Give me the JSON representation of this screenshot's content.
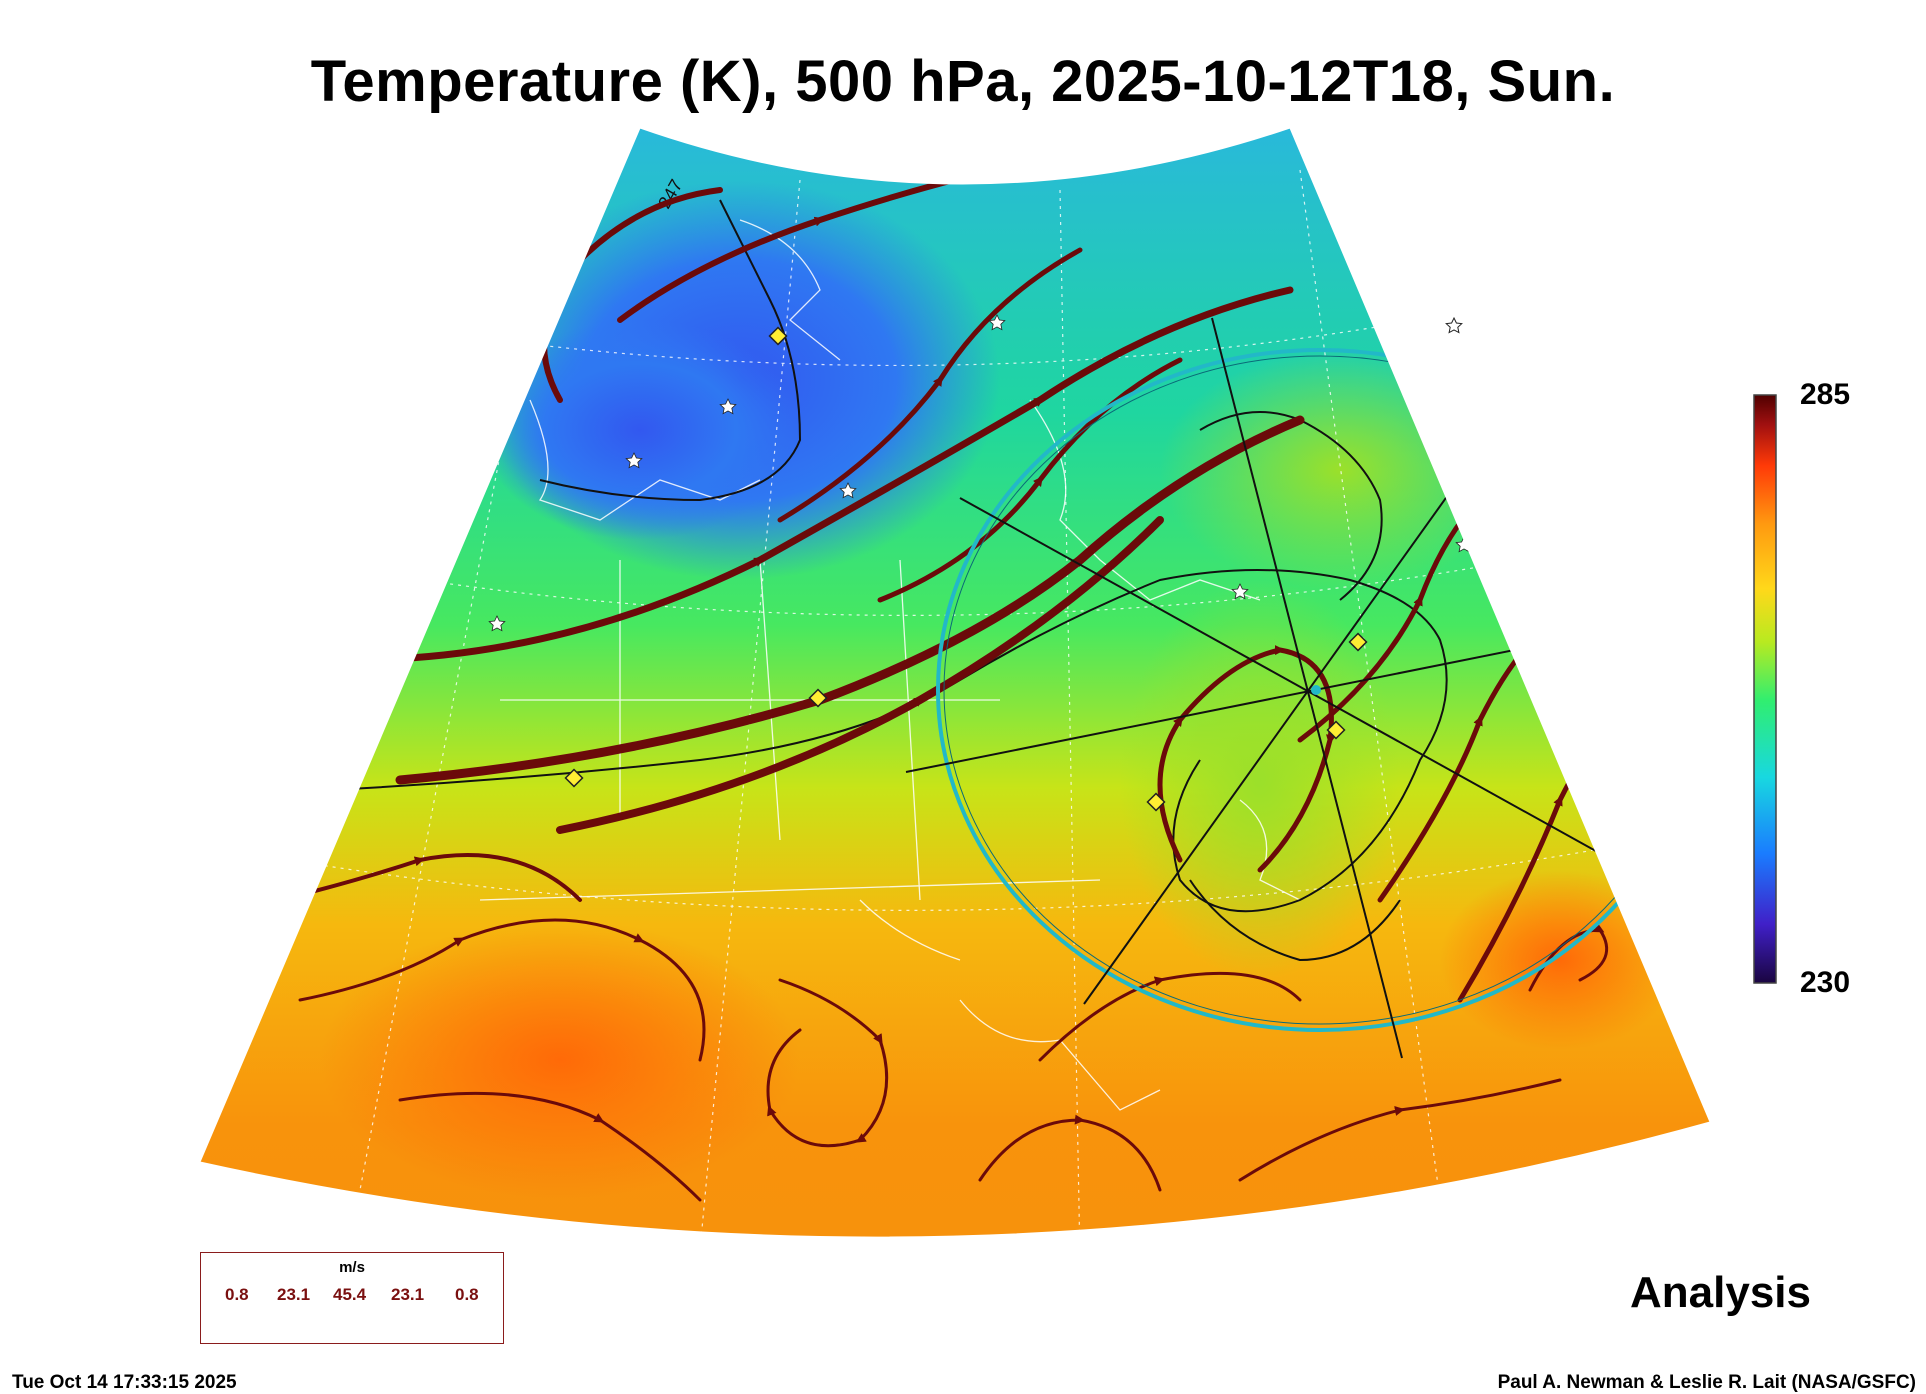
{
  "title": "Temperature (K), 500 hPa, 2025-10-12T18, Sun.",
  "colorbar": {
    "max_label": "285",
    "min_label": "230",
    "min_value": 230,
    "max_value": 285,
    "colors": [
      "#2a0a5e",
      "#3a3cff",
      "#1fa0ff",
      "#19e0c8",
      "#3fef5a",
      "#b8e81f",
      "#ffd21a",
      "#ff9d10",
      "#ff4d08",
      "#a01010",
      "#5a0000"
    ]
  },
  "contour_label": "247",
  "wind_key": {
    "unit": "m/s",
    "values": [
      "0.8",
      "23.1",
      "45.4",
      "23.1",
      "0.8"
    ]
  },
  "mode_label": "Analysis",
  "timestamp": "Tue Oct 14 17:33:15 2025",
  "credit": "Paul A. Newman & Leslie R. Lait (NASA/GSFC)",
  "colors": {
    "streamline": "#6b0a0a",
    "flight_circle": "#22b8c8",
    "marker_fill": "#ffee33"
  }
}
